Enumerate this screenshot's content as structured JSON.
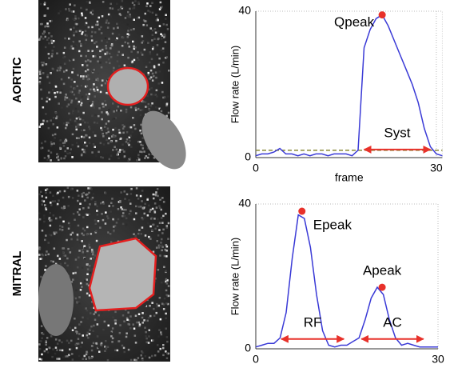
{
  "chart_data": [
    {
      "type": "line",
      "panel_label": "AORTIC",
      "ylabel": "Flow rate (L/min)",
      "xlabel": "frame",
      "x": [
        0,
        1,
        2,
        3,
        4,
        5,
        6,
        7,
        8,
        9,
        10,
        11,
        12,
        13,
        14,
        15,
        16,
        17,
        18,
        19,
        20,
        21,
        22,
        23,
        24,
        25,
        26,
        27,
        28,
        29,
        30,
        31
      ],
      "values": [
        0.5,
        1,
        1,
        1.5,
        2.5,
        1,
        1,
        0.5,
        1,
        0.5,
        1,
        1,
        0.5,
        1,
        1,
        1,
        0.5,
        2,
        30,
        35,
        38,
        39,
        36,
        32,
        28,
        24,
        20,
        15,
        8,
        3,
        1,
        0.5
      ],
      "color": "#3a3ad6",
      "xlim": [
        0,
        31
      ],
      "ylim": [
        0,
        40
      ],
      "xticks": [
        0,
        30
      ],
      "yticks": [
        0,
        40
      ],
      "grid": true,
      "threshold": 2,
      "peaks": [
        {
          "name": "Qpeak",
          "x": 21,
          "y": 39
        }
      ],
      "ranges": [
        {
          "name": "Syst",
          "start": 18,
          "end": 29,
          "y": 2.2
        }
      ]
    },
    {
      "type": "line",
      "panel_label": "MITRAL",
      "ylabel": "Flow rate (L/min)",
      "x": [
        0,
        1,
        2,
        3,
        4,
        5,
        6,
        7,
        8,
        9,
        10,
        11,
        12,
        13,
        14,
        15,
        16,
        17,
        18,
        19,
        20,
        21,
        22,
        23,
        24,
        25,
        26,
        27,
        28,
        29,
        30
      ],
      "values": [
        0.5,
        1,
        1.5,
        1.5,
        3,
        10,
        25,
        37,
        36,
        28,
        15,
        5,
        1,
        0.5,
        1,
        1,
        2,
        3,
        8,
        14,
        17,
        15,
        8,
        3,
        1,
        1.5,
        1,
        0.5,
        0.5,
        0.5,
        0.5
      ],
      "color": "#3a3ad6",
      "xlim": [
        0,
        30
      ],
      "ylim": [
        0,
        40
      ],
      "xticks": [
        0,
        30
      ],
      "yticks": [
        0,
        40
      ],
      "grid": true,
      "peaks": [
        {
          "name": "Epeak",
          "x": 7.6,
          "y": 38
        },
        {
          "name": "Apeak",
          "x": 20.8,
          "y": 17
        }
      ],
      "ranges": [
        {
          "name": "RF",
          "start": 4.2,
          "end": 14.5,
          "y": 2.7
        },
        {
          "name": "AC",
          "start": 17.4,
          "end": 27.6,
          "y": 2.7
        }
      ]
    }
  ]
}
